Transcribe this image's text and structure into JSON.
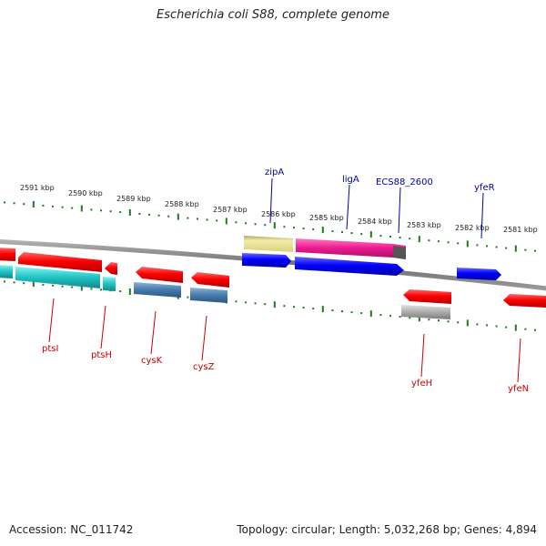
{
  "title": "Escherichia coli S88, complete genome",
  "footer": {
    "accession": "Accession: NC_011742",
    "summary": "Topology: circular; Length: 5,032,268 bp; Genes: 4,894"
  },
  "scale_labels": [
    "2591 kbp",
    "2590 kbp",
    "2589 kbp",
    "2588 kbp",
    "2587 kbp",
    "2586 kbp",
    "2585 kbp",
    "2584 kbp",
    "2583 kbp",
    "2582 kbp",
    "2581 kbp"
  ],
  "genes_top": [
    {
      "name": "zipA",
      "color": "#0000aa"
    },
    {
      "name": "ligA",
      "color": "#0000aa"
    },
    {
      "name": "ECS88_2600",
      "color": "#0000aa"
    },
    {
      "name": "yfeR",
      "color": "#0000aa"
    }
  ],
  "genes_bottom": [
    {
      "name": "ptsI",
      "color": "#cc0000"
    },
    {
      "name": "ptsH",
      "color": "#cc0000"
    },
    {
      "name": "cysK",
      "color": "#cc0000"
    },
    {
      "name": "cysZ",
      "color": "#cc0000"
    },
    {
      "name": "yfeH",
      "color": "#cc0000"
    },
    {
      "name": "yfeN",
      "color": "#cc0000"
    }
  ],
  "colors": {
    "backbone": "#7a7a7a",
    "tick": "#1f7a1f",
    "forward_gene": "#0000ee",
    "reverse_gene": "#ee0000",
    "rna_cyan": "#22c4c4",
    "steelblue": "#4a7fb0",
    "yellow": "#e8e08a",
    "pink": "#ee1a90",
    "gray": "#b0b0b0"
  }
}
